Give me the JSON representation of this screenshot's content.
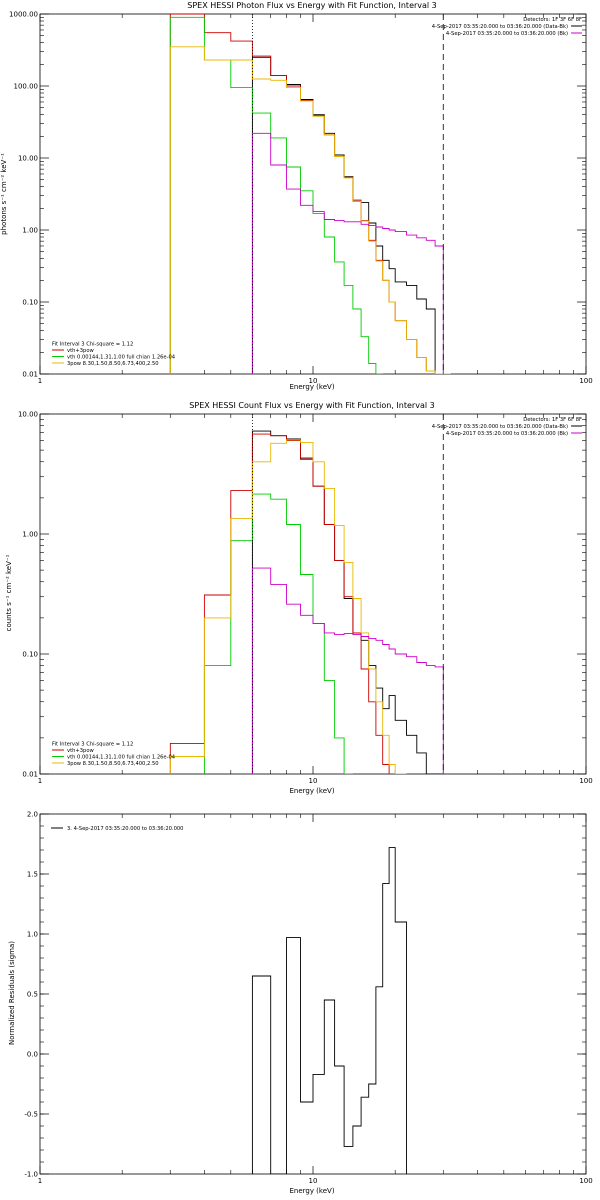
{
  "figure_background": "#ffffff",
  "chart_data": [
    {
      "type": "line",
      "title": "SPEX HESSI Photon Flux vs Energy with Fit Function, Interval 3",
      "xlabel": "Energy (keV)",
      "ylabel": "photons s⁻¹ cm⁻² keV⁻¹",
      "xscale": "log",
      "yscale": "log",
      "xlim": [
        1,
        100
      ],
      "ylim": [
        0.01,
        1000
      ],
      "xticks": [
        {
          "v": 1,
          "label": "1"
        },
        {
          "v": 10,
          "label": "10"
        },
        {
          "v": 100,
          "label": "100"
        }
      ],
      "yticks": [
        {
          "v": 0.01,
          "label": "0.01"
        },
        {
          "v": 0.1,
          "label": "0.10"
        },
        {
          "v": 1,
          "label": "1.00"
        },
        {
          "v": 10,
          "label": "10.00"
        },
        {
          "v": 100,
          "label": "100.00"
        },
        {
          "v": 1000,
          "label": "1000.00"
        }
      ],
      "vlines": [
        {
          "x": 6.0,
          "style": "dotted"
        },
        {
          "x": 30.0,
          "style": "dashed"
        }
      ],
      "edges": [
        3,
        4,
        5,
        6,
        7,
        8,
        9,
        10,
        11,
        12,
        13,
        14,
        15,
        16,
        17,
        18,
        19,
        20,
        22,
        24,
        26,
        28,
        30,
        32
      ],
      "series": [
        {
          "key": "data",
          "color": "#000000",
          "values": [
            null,
            null,
            null,
            250,
            140,
            105,
            65,
            40,
            22,
            11,
            5.5,
            2.5,
            2.4,
            1.25,
            0.6,
            0.38,
            0.29,
            0.19,
            0.17,
            0.11,
            0.08,
            null,
            null
          ]
        },
        {
          "key": "vth+3pow",
          "color": "#cc0000",
          "values": [
            1000,
            550,
            420,
            260,
            140,
            100,
            63,
            39,
            21,
            10.5,
            5.4,
            2.6,
            1.35,
            0.72,
            0.38,
            0.2,
            0.1,
            0.055,
            0.03,
            0.017,
            0.011,
            null,
            null
          ]
        },
        {
          "key": "vth",
          "color": "#00cc00",
          "values": [
            900,
            230,
            95,
            42,
            19,
            7.5,
            3.5,
            1.7,
            0.8,
            0.36,
            0.17,
            0.08,
            0.033,
            0.014,
            0.005,
            null,
            null,
            null,
            null,
            null,
            null,
            null,
            null
          ]
        },
        {
          "key": "3pow",
          "color": "#e8b800",
          "values": [
            350,
            230,
            230,
            125,
            120,
            95,
            62,
            38,
            21,
            10.5,
            5.3,
            2.5,
            1.33,
            0.7,
            0.37,
            0.2,
            0.1,
            0.055,
            0.03,
            0.017,
            0.011,
            0.008,
            0.005
          ]
        },
        {
          "key": "bk",
          "color": "#cc00cc",
          "values": [
            null,
            null,
            null,
            22,
            8,
            3.7,
            2.2,
            1.8,
            1.4,
            1.35,
            1.3,
            1.3,
            1.2,
            1.15,
            1.1,
            1.05,
            1.0,
            0.95,
            0.85,
            0.78,
            0.72,
            0.6,
            null
          ]
        }
      ],
      "top_legend": [
        {
          "text": "Detectors: 1F 3F 6F 8F",
          "color": null
        },
        {
          "text": "4-Sep-2017 03:35:20.000 to 03:36:20.000 (Data-Bk)",
          "color": "#000000"
        },
        {
          "text": "4-Sep-2017 03:35:20.000 to 03:36:20.000 (Bk)",
          "color": "#cc00cc"
        }
      ],
      "bottom_legend": {
        "header": "Fit Interval 3   Chi-square = 1.12",
        "items": [
          {
            "text": "vth+3pow",
            "color": "#cc0000"
          },
          {
            "text": "vth 0.00144,1.31,1.00  full chian 1.26e-04",
            "color": "#00cc00"
          },
          {
            "text": "3pow 8.30,1.50,8.50,6.73,400,2.50",
            "color": "#e8b800"
          }
        ]
      }
    },
    {
      "type": "line",
      "title": "SPEX HESSI Count Flux vs Energy with Fit Function, Interval 3",
      "xlabel": "Energy (keV)",
      "ylabel": "counts s⁻¹ cm⁻² keV⁻¹",
      "xscale": "log",
      "yscale": "log",
      "xlim": [
        1,
        100
      ],
      "ylim": [
        0.01,
        10
      ],
      "xticks": [
        {
          "v": 1,
          "label": "1"
        },
        {
          "v": 10,
          "label": "10"
        },
        {
          "v": 100,
          "label": "100"
        }
      ],
      "yticks": [
        {
          "v": 0.01,
          "label": "0.01"
        },
        {
          "v": 0.1,
          "label": "0.10"
        },
        {
          "v": 1,
          "label": "1.00"
        },
        {
          "v": 10,
          "label": "10.00"
        }
      ],
      "vlines": [
        {
          "x": 6.0,
          "style": "dotted"
        },
        {
          "x": 30.0,
          "style": "dashed"
        }
      ],
      "edges": [
        3,
        4,
        5,
        6,
        7,
        8,
        9,
        10,
        11,
        12,
        13,
        14,
        15,
        16,
        17,
        18,
        19,
        20,
        22,
        24,
        26,
        28,
        30
      ],
      "series": [
        {
          "key": "data",
          "color": "#000000",
          "values": [
            null,
            null,
            null,
            7.2,
            6.6,
            6.2,
            4.2,
            2.5,
            1.2,
            0.6,
            0.29,
            0.15,
            0.13,
            0.08,
            0.052,
            0.035,
            0.045,
            0.028,
            0.021,
            0.015,
            0.01,
            0.009
          ]
        },
        {
          "key": "vth+3pow",
          "color": "#cc0000",
          "values": [
            0.018,
            0.31,
            2.3,
            6.8,
            6.6,
            6.0,
            4.3,
            2.5,
            1.2,
            0.6,
            0.3,
            0.15,
            0.075,
            0.04,
            0.021,
            0.012,
            0.008,
            null,
            null,
            null,
            null,
            null
          ]
        },
        {
          "key": "vth",
          "color": "#00cc00",
          "values": [
            null,
            0.08,
            0.88,
            2.15,
            1.95,
            1.2,
            0.46,
            0.18,
            0.06,
            0.02,
            0.007,
            null,
            null,
            null,
            null,
            null,
            null,
            null,
            null,
            null,
            null,
            null
          ]
        },
        {
          "key": "3pow",
          "color": "#e8b800",
          "values": [
            0.014,
            0.2,
            1.35,
            4.0,
            5.7,
            6.1,
            5.8,
            4.0,
            2.4,
            1.18,
            0.58,
            0.29,
            0.15,
            0.075,
            0.04,
            0.021,
            0.012,
            0.008,
            null,
            null,
            null,
            null
          ]
        },
        {
          "key": "bk",
          "color": "#cc00cc",
          "values": [
            null,
            null,
            null,
            0.52,
            0.38,
            0.26,
            0.21,
            0.18,
            0.15,
            0.145,
            0.148,
            0.145,
            0.14,
            0.135,
            0.13,
            0.12,
            0.11,
            0.1,
            0.095,
            0.085,
            0.08,
            0.078
          ]
        }
      ],
      "top_legend": [
        {
          "text": "Detectors: 1F 3F 6F 8F",
          "color": null
        },
        {
          "text": "4-Sep-2017 03:35:20.000 to 03:36:20.000 (Data-Bk)",
          "color": "#000000"
        },
        {
          "text": "4-Sep-2017 03:35:20.000 to 03:36:20.000 (Bk)",
          "color": "#cc00cc"
        }
      ],
      "bottom_legend": {
        "header": "Fit Interval 3   Chi-square = 1.12",
        "items": [
          {
            "text": "vth+3pow",
            "color": "#cc0000"
          },
          {
            "text": "vth 0.00144,1.31,1.00  full chian 1.26e-04",
            "color": "#00cc00"
          },
          {
            "text": "3pow 8.30,1.50,8.50,6.73,400,2.50",
            "color": "#e8b800"
          }
        ]
      }
    },
    {
      "type": "line",
      "title": "",
      "xlabel": "Energy (keV)",
      "ylabel": "Normalized Residuals (sigma)",
      "xscale": "log",
      "yscale": "linear",
      "xlim": [
        1,
        100
      ],
      "ylim": [
        -1.0,
        2.0
      ],
      "xticks": [
        {
          "v": 1,
          "label": "1"
        },
        {
          "v": 10,
          "label": "10"
        },
        {
          "v": 100,
          "label": "100"
        }
      ],
      "yticks": [
        {
          "v": -1.0,
          "label": "-1.0"
        },
        {
          "v": -0.5,
          "label": "-0.5"
        },
        {
          "v": 0,
          "label": "0.0"
        },
        {
          "v": 0.5,
          "label": "0.5"
        },
        {
          "v": 1.0,
          "label": "1.0"
        },
        {
          "v": 1.5,
          "label": "1.5"
        },
        {
          "v": 2.0,
          "label": "2.0"
        }
      ],
      "vlines": [],
      "edges": [
        6,
        7,
        8,
        9,
        10,
        11,
        12,
        13,
        14,
        15,
        16,
        17,
        18,
        19,
        20,
        22,
        24,
        26,
        28,
        30
      ],
      "series": [
        {
          "key": "residuals",
          "color": "#000000",
          "values": [
            0.65,
            -1.0,
            0.97,
            -0.4,
            -0.17,
            0.45,
            -0.1,
            -0.77,
            -0.6,
            -0.36,
            -0.25,
            0.56,
            1.42,
            1.72,
            1.1
          ]
        }
      ],
      "top_legend": [],
      "bottom_legend": null,
      "inset_legend": "3.  4-Sep-2017 03:35:20.000 to 03:36:20.000"
    }
  ]
}
